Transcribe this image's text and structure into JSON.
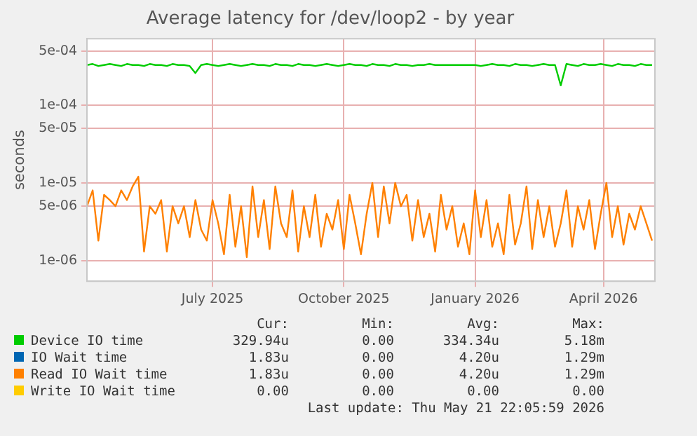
{
  "chart_data": {
    "type": "line",
    "title": "Average latency for /dev/loop2 - by year",
    "ylabel": "seconds",
    "log": "y",
    "grid": true,
    "legend": "bottom",
    "marker": "none",
    "line_style": "solid",
    "xlim": [
      "2025-04-04",
      "2026-05-07"
    ],
    "xticks": [
      {
        "value": "2025-07-01",
        "label": "July 2025"
      },
      {
        "value": "2025-10-01",
        "label": "October 2025"
      },
      {
        "value": "2026-01-01",
        "label": "January 2026"
      },
      {
        "value": "2026-04-01",
        "label": "April 2026"
      }
    ],
    "ylim": [
      5.4e-07,
      0.00072
    ],
    "yticks": [
      {
        "value": 1e-06,
        "label": "1e-06"
      },
      {
        "value": 5e-06,
        "label": "5e-06"
      },
      {
        "value": 1e-05,
        "label": "1e-05"
      },
      {
        "value": 5e-05,
        "label": "5e-05"
      },
      {
        "value": 0.0001,
        "label": "1e-04"
      },
      {
        "value": 0.0005,
        "label": "5e-04"
      }
    ],
    "x": [
      "2025-04-04",
      "2025-04-08",
      "2025-04-12",
      "2025-04-16",
      "2025-04-20",
      "2025-04-24",
      "2025-04-28",
      "2025-05-02",
      "2025-05-06",
      "2025-05-10",
      "2025-05-14",
      "2025-05-18",
      "2025-05-22",
      "2025-05-26",
      "2025-05-30",
      "2025-06-03",
      "2025-06-07",
      "2025-06-11",
      "2025-06-15",
      "2025-06-19",
      "2025-06-23",
      "2025-06-27",
      "2025-07-01",
      "2025-07-05",
      "2025-07-09",
      "2025-07-13",
      "2025-07-17",
      "2025-07-21",
      "2025-07-25",
      "2025-07-29",
      "2025-08-02",
      "2025-08-06",
      "2025-08-10",
      "2025-08-14",
      "2025-08-18",
      "2025-08-22",
      "2025-08-26",
      "2025-08-30",
      "2025-09-03",
      "2025-09-07",
      "2025-09-11",
      "2025-09-15",
      "2025-09-19",
      "2025-09-23",
      "2025-09-27",
      "2025-10-01",
      "2025-10-05",
      "2025-10-09",
      "2025-10-13",
      "2025-10-17",
      "2025-10-21",
      "2025-10-25",
      "2025-10-29",
      "2025-11-02",
      "2025-11-06",
      "2025-11-10",
      "2025-11-14",
      "2025-11-18",
      "2025-11-22",
      "2025-11-26",
      "2025-11-30",
      "2025-12-04",
      "2025-12-08",
      "2025-12-12",
      "2025-12-16",
      "2025-12-20",
      "2025-12-24",
      "2025-12-28",
      "2026-01-01",
      "2026-01-05",
      "2026-01-09",
      "2026-01-13",
      "2026-01-17",
      "2026-01-21",
      "2026-01-25",
      "2026-01-29",
      "2026-02-02",
      "2026-02-06",
      "2026-02-10",
      "2026-02-14",
      "2026-02-18",
      "2026-02-22",
      "2026-02-26",
      "2026-03-02",
      "2026-03-06",
      "2026-03-10",
      "2026-03-14",
      "2026-03-18",
      "2026-03-22",
      "2026-03-26",
      "2026-03-30",
      "2026-04-03",
      "2026-04-07",
      "2026-04-11",
      "2026-04-15",
      "2026-04-19",
      "2026-04-23",
      "2026-04-27",
      "2026-05-01",
      "2026-05-05"
    ],
    "series": [
      {
        "name": "Device IO time",
        "color": "#00cc00",
        "values": [
          0.00033,
          0.00034,
          0.00032,
          0.00033,
          0.00034,
          0.00033,
          0.00032,
          0.00034,
          0.00033,
          0.00033,
          0.00032,
          0.00034,
          0.00033,
          0.00033,
          0.00032,
          0.00034,
          0.00033,
          0.00033,
          0.00032,
          0.00026,
          0.00033,
          0.00034,
          0.00033,
          0.00032,
          0.00033,
          0.00034,
          0.00033,
          0.00032,
          0.00033,
          0.00034,
          0.00033,
          0.00033,
          0.00032,
          0.00034,
          0.00033,
          0.00033,
          0.00032,
          0.00034,
          0.00033,
          0.00033,
          0.00032,
          0.00033,
          0.00034,
          0.00033,
          0.00032,
          0.00033,
          0.00034,
          0.00033,
          0.00033,
          0.00032,
          0.00034,
          0.00033,
          0.00033,
          0.00032,
          0.00034,
          0.00033,
          0.00033,
          0.00032,
          0.00033,
          0.00033,
          0.00034,
          0.00033,
          0.00033,
          0.00033,
          0.00033,
          0.00033,
          0.00033,
          0.00033,
          0.00033,
          0.00032,
          0.00033,
          0.00034,
          0.00033,
          0.00033,
          0.00032,
          0.00034,
          0.00033,
          0.00033,
          0.00032,
          0.00033,
          0.00034,
          0.00033,
          0.00033,
          0.00018,
          0.00034,
          0.00033,
          0.00032,
          0.00034,
          0.00033,
          0.00033,
          0.00034,
          0.00033,
          0.00032,
          0.00034,
          0.00033,
          0.00033,
          0.00032,
          0.00034,
          0.00033,
          0.00033
        ]
      },
      {
        "name": "IO Wait time",
        "color": "#0066b3",
        "values": [
          null,
          null,
          null,
          null,
          null,
          null,
          null,
          null,
          null,
          null,
          null,
          null,
          null,
          null,
          null,
          null,
          null,
          null,
          null,
          null,
          null,
          null,
          null,
          null,
          null,
          null,
          null,
          null,
          null,
          null,
          null,
          null,
          null,
          null,
          null,
          null,
          null,
          null,
          null,
          null,
          null,
          null,
          null,
          null,
          null,
          null,
          null,
          null,
          null,
          null,
          null,
          null,
          null,
          null,
          null,
          null,
          null,
          null,
          null,
          null,
          null,
          null,
          null,
          null,
          null,
          null,
          null,
          null,
          null,
          null,
          null,
          null,
          null,
          null,
          null,
          null,
          null,
          null,
          null,
          null,
          null,
          null,
          null,
          null,
          null,
          null,
          null,
          null,
          null,
          null,
          null,
          null,
          null,
          null,
          null,
          null,
          null,
          null,
          null,
          null
        ]
      },
      {
        "name": "Read IO Wait time",
        "color": "#ff8000",
        "values": [
          5e-06,
          8e-06,
          1.8e-06,
          7e-06,
          6e-06,
          5e-06,
          8e-06,
          6e-06,
          9e-06,
          1.2e-05,
          1.3e-06,
          5e-06,
          4e-06,
          6e-06,
          1.3e-06,
          5e-06,
          3e-06,
          5e-06,
          2e-06,
          6e-06,
          2.5e-06,
          1.8e-06,
          6e-06,
          3e-06,
          1.2e-06,
          7e-06,
          1.5e-06,
          5e-06,
          1.1e-06,
          9e-06,
          2e-06,
          6e-06,
          1.4e-06,
          9e-06,
          3e-06,
          2e-06,
          8e-06,
          1.3e-06,
          5e-06,
          2e-06,
          7e-06,
          1.5e-06,
          4e-06,
          2.5e-06,
          6e-06,
          1.4e-06,
          7e-06,
          3e-06,
          1.2e-06,
          4e-06,
          1e-05,
          2e-06,
          9e-06,
          3e-06,
          1e-05,
          5e-06,
          7e-06,
          1.8e-06,
          6e-06,
          2e-06,
          4e-06,
          1.3e-06,
          7e-06,
          2.5e-06,
          5e-06,
          1.5e-06,
          3e-06,
          1.2e-06,
          8e-06,
          2e-06,
          6e-06,
          1.5e-06,
          3e-06,
          1.2e-06,
          7e-06,
          1.6e-06,
          3e-06,
          9e-06,
          1.4e-06,
          6e-06,
          2e-06,
          5e-06,
          1.5e-06,
          3e-06,
          8e-06,
          1.5e-06,
          5e-06,
          2.5e-06,
          6e-06,
          1.4e-06,
          4e-06,
          1e-05,
          2e-06,
          5e-06,
          1.6e-06,
          4e-06,
          2.5e-06,
          5e-06,
          3e-06,
          1.8e-06
        ]
      },
      {
        "name": "Write IO Wait time",
        "color": "#ffcc00",
        "values": [
          null,
          null,
          null,
          null,
          null,
          null,
          null,
          null,
          null,
          null,
          null,
          null,
          null,
          null,
          null,
          null,
          null,
          null,
          null,
          null,
          null,
          null,
          null,
          null,
          null,
          null,
          null,
          null,
          null,
          null,
          null,
          null,
          null,
          null,
          null,
          null,
          null,
          null,
          null,
          null,
          null,
          null,
          null,
          null,
          null,
          null,
          null,
          null,
          null,
          null,
          null,
          null,
          null,
          null,
          null,
          null,
          null,
          null,
          null,
          null,
          null,
          null,
          null,
          null,
          null,
          null,
          null,
          null,
          null,
          null,
          null,
          null,
          null,
          null,
          null,
          null,
          null,
          null,
          null,
          null,
          null,
          null,
          null,
          null,
          null,
          null,
          null,
          null,
          null,
          null,
          null,
          null,
          null,
          null,
          null,
          null,
          null,
          null,
          null,
          null
        ]
      }
    ],
    "annotations": [
      "Cur:",
      "Min:",
      "Avg:",
      "Max:",
      "329.94u",
      "0.00",
      "334.34u",
      "5.18m",
      "1.83u",
      "0.00",
      "4.20u",
      "1.29m",
      "1.83u",
      "0.00",
      "4.20u",
      "1.29m",
      "0.00",
      "0.00",
      "0.00",
      "0.00",
      "Last update: Thu May 21 22:05:59 2026"
    ]
  }
}
